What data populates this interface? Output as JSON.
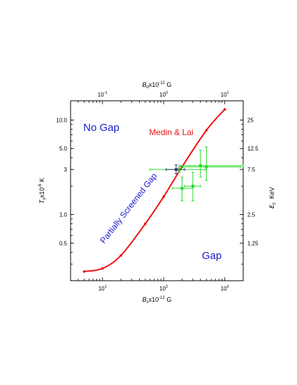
{
  "chart_data": {
    "type": "scatter",
    "x_axis_bottom": {
      "label_main": "B",
      "label_sub": "s",
      "label_rest": "x10",
      "label_exp": "-12",
      "label_unit": " G",
      "scale": "log",
      "range": [
        3,
        2000
      ],
      "ticks": [
        {
          "value": 10,
          "base": "10",
          "exp": "1"
        },
        {
          "value": 100,
          "base": "10",
          "exp": "2"
        },
        {
          "value": 1000,
          "base": "10",
          "exp": "3"
        }
      ]
    },
    "x_axis_top": {
      "label_main": "B",
      "label_sub": "d",
      "label_rest": "x10",
      "label_exp": "-12",
      "label_unit": " G",
      "scale": "log",
      "ticks": [
        {
          "value": 10,
          "base": "10",
          "exp": "-1"
        },
        {
          "value": 100,
          "base": "10",
          "exp": "0"
        },
        {
          "value": 1000,
          "base": "10",
          "exp": "1"
        }
      ]
    },
    "y_axis_left": {
      "label_main": "T",
      "label_sub": "s",
      "label_rest": "x10",
      "label_exp": "-6",
      "label_unit": " K",
      "scale": "log",
      "range": [
        0.2,
        16
      ],
      "ticks": [
        {
          "value": 0.5,
          "label": "0.5"
        },
        {
          "value": 1.0,
          "label": "1.0"
        },
        {
          "value": 3,
          "label": "3"
        },
        {
          "value": 5.0,
          "label": "5.0"
        },
        {
          "value": 10.0,
          "label": "10.0"
        }
      ]
    },
    "y_axis_right": {
      "label_main": "ε",
      "label_sub": "c",
      "label_unit": "KeV",
      "ticks": [
        {
          "value": 0.5,
          "label": "1.25"
        },
        {
          "value": 1.0,
          "label": "2.5"
        },
        {
          "value": 3,
          "label": "7.5"
        },
        {
          "value": 5.0,
          "label": "12.5"
        },
        {
          "value": 10.0,
          "label": "25"
        }
      ]
    },
    "curve": {
      "color": "#ee1111",
      "x": [
        5,
        10,
        20,
        50,
        100,
        200,
        500,
        1000
      ],
      "y": [
        0.25,
        0.27,
        0.37,
        0.8,
        1.55,
        3.2,
        7.8,
        13.0
      ]
    },
    "green_points": {
      "color": "#22dd22",
      "points": [
        {
          "x": 200,
          "y": 1.9,
          "xerr": [
            60,
            100
          ],
          "yerr": [
            0.5,
            0.6
          ]
        },
        {
          "x": 300,
          "y": 2.0,
          "xerr": [
            80,
            100
          ],
          "yerr": [
            0.6,
            0.8
          ]
        },
        {
          "x": 400,
          "y": 3.3,
          "xerr": [
            220,
            1600
          ],
          "yerr": [
            0.8,
            1.5
          ]
        },
        {
          "x": 500,
          "y": 3.2,
          "xerr": [
            300,
            1300
          ],
          "yerr": [
            0.9,
            2.0
          ]
        },
        {
          "x": 180,
          "y": 3.0,
          "xerr": [
            120,
            300
          ],
          "yerr": [
            0.2,
            0.2
          ]
        }
      ]
    },
    "dark_point": {
      "color": "#333366",
      "x": 160,
      "y": 3.0,
      "xerr": [
        50,
        60
      ],
      "yerr": [
        0.3,
        0.35
      ]
    },
    "annotations": [
      {
        "text": "No Gap",
        "color": "#1a1acc"
      },
      {
        "text": "Medin & Lai",
        "color": "#ee1111"
      },
      {
        "text": "Partially Screened Gap",
        "color": "#1a1acc"
      },
      {
        "text": "Gap",
        "color": "#1a1acc"
      }
    ]
  }
}
